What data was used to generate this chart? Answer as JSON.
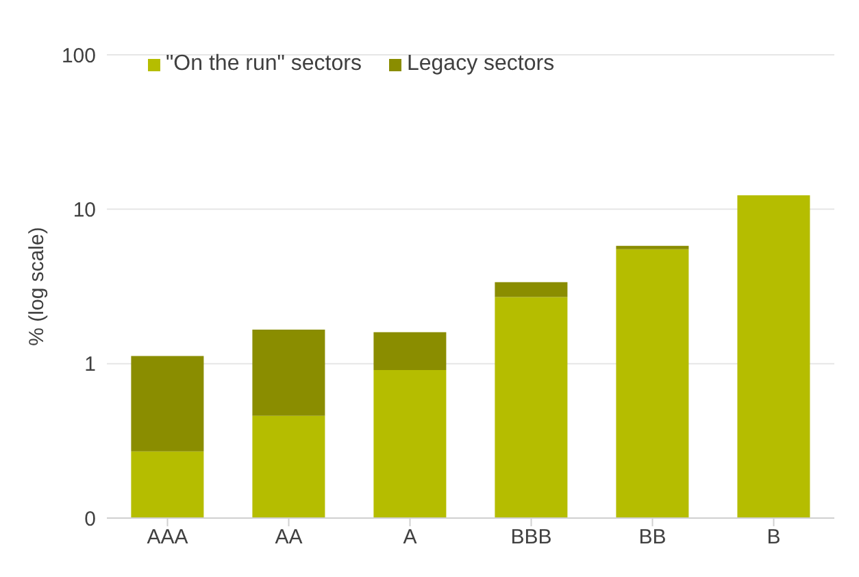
{
  "chart_data": {
    "type": "bar",
    "stacked": true,
    "log": true,
    "ylabel": "% (log scale)",
    "categories": [
      "AAA",
      "AA",
      "A",
      "BBB",
      "BB",
      "B"
    ],
    "series": [
      {
        "name": "\"On the run\" sectors",
        "color": "#b5bd00",
        "values": [
          0.27,
          0.46,
          0.91,
          2.7,
          5.5,
          12.3
        ]
      },
      {
        "name": "Legacy sectors",
        "color": "#8a8d00",
        "values": [
          0.85,
          1.2,
          0.69,
          0.67,
          0.3,
          null
        ]
      }
    ],
    "ylim": [
      0.1,
      100
    ],
    "yticks": [
      {
        "value": 0.1,
        "label": "0"
      },
      1,
      10,
      100
    ],
    "grid": "y",
    "legend": "top left"
  }
}
